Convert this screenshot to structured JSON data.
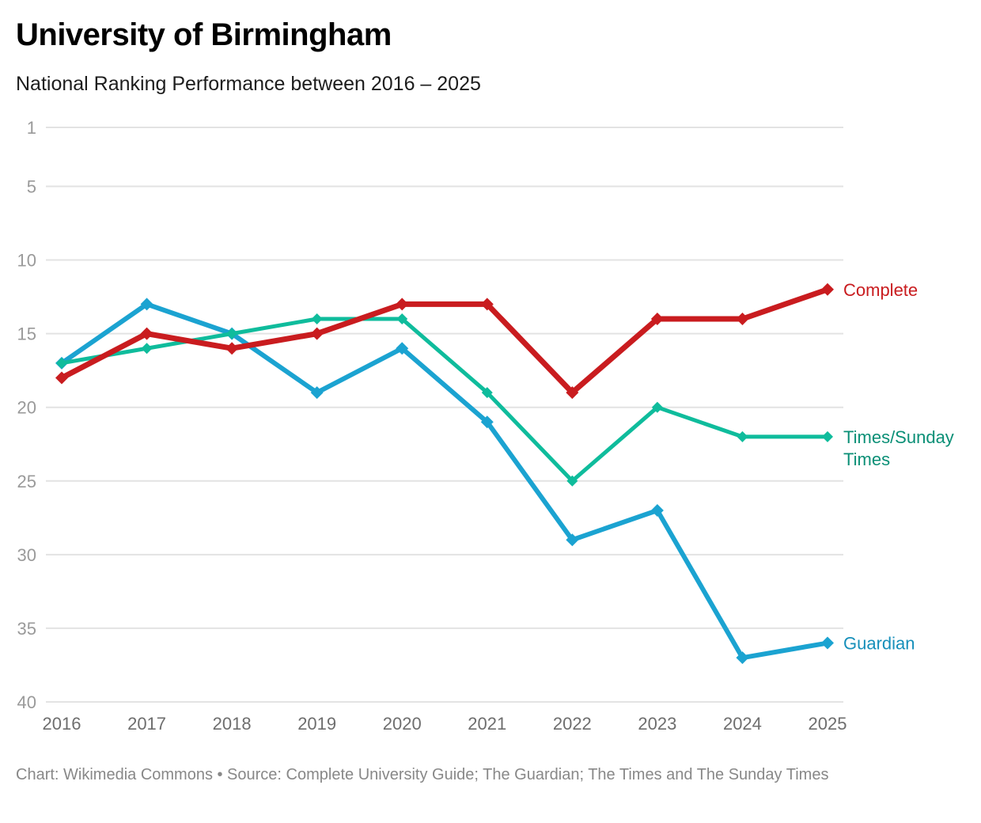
{
  "header": {
    "title": "University of Birmingham",
    "subtitle": "National Ranking Performance between 2016 – 2025"
  },
  "footer": {
    "credit": "Chart: Wikimedia Commons • Source: Complete University Guide; The Guardian; The Times and The Sunday Times"
  },
  "chart_data": {
    "type": "line",
    "title": "University of Birmingham",
    "subtitle": "National Ranking Performance between 2016 – 2025",
    "xlabel": "",
    "ylabel": "",
    "x": [
      "2016",
      "2017",
      "2018",
      "2019",
      "2020",
      "2021",
      "2022",
      "2023",
      "2024",
      "2025"
    ],
    "y_ticks": [
      1,
      5,
      10,
      15,
      20,
      25,
      30,
      35,
      40
    ],
    "ylim": [
      1,
      40
    ],
    "y_inverted": true,
    "grid": true,
    "legend": "direct-labels-right",
    "marker": "diamond",
    "series": [
      {
        "name": "Guardian",
        "label": "Guardian",
        "color": "#1ba3d1",
        "label_color": "#168fba",
        "values": [
          17,
          13,
          15,
          19,
          16,
          21,
          29,
          27,
          37,
          36
        ]
      },
      {
        "name": "Times/Sunday Times",
        "label": "Times/Sunday Times",
        "label_lines": [
          "Times/Sunday",
          "Times"
        ],
        "color": "#0fbc9c",
        "label_color": "#0a8f76",
        "values": [
          17,
          16,
          15,
          14,
          14,
          19,
          25,
          20,
          22,
          22
        ]
      },
      {
        "name": "Complete",
        "label": "Complete",
        "color": "#c91c1f",
        "label_color": "#c91c1f",
        "values": [
          18,
          15,
          16,
          15,
          13,
          13,
          19,
          14,
          14,
          12
        ]
      }
    ]
  }
}
